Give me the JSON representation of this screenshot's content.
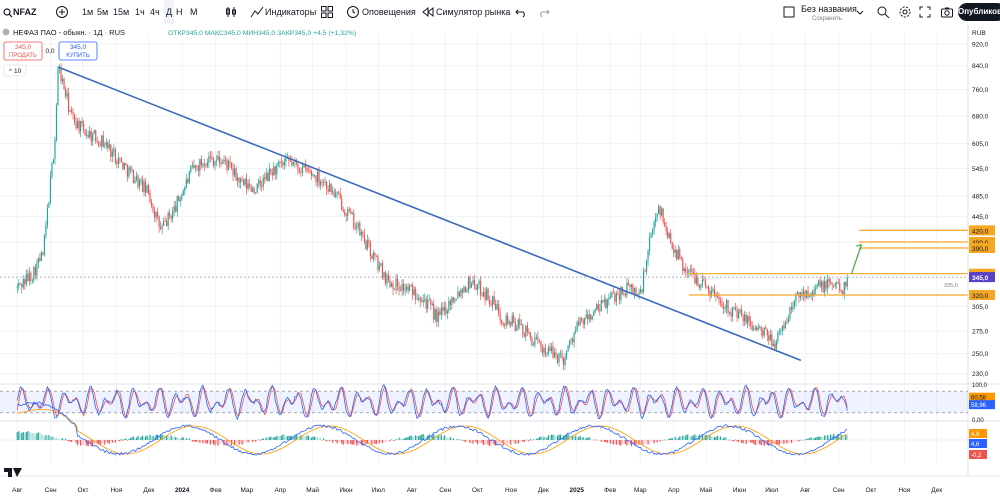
{
  "toolbar": {
    "symbol": "NFAZ",
    "intervals": [
      "1м",
      "5м",
      "15м",
      "1ч",
      "4ч",
      "Д",
      "Н",
      "М"
    ],
    "active_interval": "Д",
    "indicators_label": "Индикаторы",
    "alerts_label": "Оповещения",
    "replay_label": "Симулятор рынка",
    "layout_name": "Без названия",
    "layout_status": "Сохранить",
    "publish_label": "Опубликовать",
    "currency": "RUB"
  },
  "legend": {
    "title": "НЕФАЗ ПАО - обыкн. · 1Д · RUS",
    "ohlc": "ОТКР345,0 МАКС345,0 МИН345,0 ЗАКР345,0 +4,5 (+1,32%)",
    "sell_price": "345,0",
    "sell_label": "ПРОДАТЬ",
    "spread": "0,0",
    "buy_price": "345,0",
    "buy_label": "КУПИТЬ",
    "indicator_count": "10"
  },
  "colors": {
    "up": "#26a69a",
    "down": "#ef5350",
    "trendline": "#3a6bbf",
    "level": "#f5a623",
    "current_price": "#5b3fc4",
    "stoch_k": "#2962ff",
    "stoch_d": "#ef5350",
    "macd_line": "#2962ff",
    "signal_line": "#ff9800",
    "projection_arrow": "#4caf50"
  },
  "chart_data": {
    "type": "candlestick",
    "title": "НЕФАЗ ПАО - обыкн. · 1Д · RUS",
    "currency": "RUB",
    "y_ticks": [
      "920,0",
      "840,0",
      "760,0",
      "680,0",
      "605,0",
      "545,0",
      "485,0",
      "445,0",
      "400,0",
      "350,0",
      "305,0",
      "275,0",
      "250,0",
      "230,0"
    ],
    "y_log_range": [
      220,
      960
    ],
    "x_ticks": [
      "Авг",
      "Сен",
      "Окт",
      "Ноя",
      "Дек",
      "2024",
      "Фев",
      "Мар",
      "Апр",
      "Май",
      "Июн",
      "Июл",
      "Авг",
      "Сен",
      "Окт",
      "Ноя",
      "Дек",
      "2025",
      "Фев",
      "Мар",
      "Апр",
      "Май",
      "Июн",
      "Июл",
      "Авг",
      "Сен",
      "Окт",
      "Ноя",
      "Дек"
    ],
    "price_anchors": [
      [
        "2023-08-01",
        330
      ],
      [
        "2023-08-15",
        350
      ],
      [
        "2023-08-25",
        380
      ],
      [
        "2023-09-05",
        620
      ],
      [
        "2023-09-08",
        840
      ],
      [
        "2023-09-20",
        680
      ],
      [
        "2023-10-01",
        640
      ],
      [
        "2023-10-20",
        610
      ],
      [
        "2023-11-05",
        560
      ],
      [
        "2023-11-20",
        520
      ],
      [
        "2023-12-01",
        490
      ],
      [
        "2023-12-12",
        420
      ],
      [
        "2023-12-25",
        460
      ],
      [
        "2024-01-10",
        540
      ],
      [
        "2024-01-25",
        570
      ],
      [
        "2024-02-10",
        560
      ],
      [
        "2024-02-25",
        510
      ],
      [
        "2024-03-10",
        500
      ],
      [
        "2024-03-25",
        540
      ],
      [
        "2024-04-10",
        560
      ],
      [
        "2024-04-25",
        540
      ],
      [
        "2024-05-10",
        520
      ],
      [
        "2024-05-25",
        480
      ],
      [
        "2024-06-10",
        430
      ],
      [
        "2024-06-25",
        380
      ],
      [
        "2024-07-10",
        340
      ],
      [
        "2024-07-25",
        330
      ],
      [
        "2024-08-10",
        320
      ],
      [
        "2024-08-25",
        290
      ],
      [
        "2024-09-10",
        320
      ],
      [
        "2024-09-25",
        340
      ],
      [
        "2024-10-10",
        320
      ],
      [
        "2024-10-25",
        290
      ],
      [
        "2024-11-10",
        280
      ],
      [
        "2024-11-25",
        260
      ],
      [
        "2024-12-10",
        250
      ],
      [
        "2024-12-20",
        245
      ],
      [
        "2025-01-01",
        280
      ],
      [
        "2025-01-20",
        300
      ],
      [
        "2025-02-05",
        320
      ],
      [
        "2025-02-20",
        330
      ],
      [
        "2025-03-01",
        320
      ],
      [
        "2025-03-10",
        400
      ],
      [
        "2025-03-18",
        470
      ],
      [
        "2025-03-25",
        420
      ],
      [
        "2025-04-10",
        360
      ],
      [
        "2025-04-25",
        340
      ],
      [
        "2025-05-10",
        320
      ],
      [
        "2025-05-25",
        300
      ],
      [
        "2025-06-10",
        285
      ],
      [
        "2025-06-25",
        270
      ],
      [
        "2025-07-05",
        262
      ],
      [
        "2025-07-15",
        290
      ],
      [
        "2025-07-25",
        320
      ],
      [
        "2025-08-10",
        330
      ],
      [
        "2025-08-25",
        335
      ],
      [
        "2025-09-05",
        330
      ],
      [
        "2025-09-10",
        345
      ]
    ],
    "trendline": {
      "start": [
        "2023-09-08",
        835
      ],
      "end": [
        "2025-07-28",
        243
      ]
    },
    "levels": [
      {
        "value": 420,
        "label": "420,0"
      },
      {
        "value": 400,
        "label": "400,0"
      },
      {
        "value": 390,
        "label": "390,0"
      },
      {
        "value": 350,
        "label": "350,0"
      },
      {
        "value": 320,
        "label": "320,0"
      }
    ],
    "current_price": {
      "value": 345,
      "label": "345,0",
      "sub_label": "335,0"
    },
    "stochastic": {
      "y_ticks": [
        "100,0",
        "0,00"
      ],
      "k_label": "60,58",
      "d_label": "58,96",
      "band_upper": 80,
      "band_lower": 20
    },
    "macd": {
      "labels": [
        {
          "value": 4.9,
          "text": "4,9"
        },
        {
          "value": 4.6,
          "text": "4,6"
        },
        {
          "value": -0.2,
          "text": "-0,2"
        }
      ]
    }
  }
}
